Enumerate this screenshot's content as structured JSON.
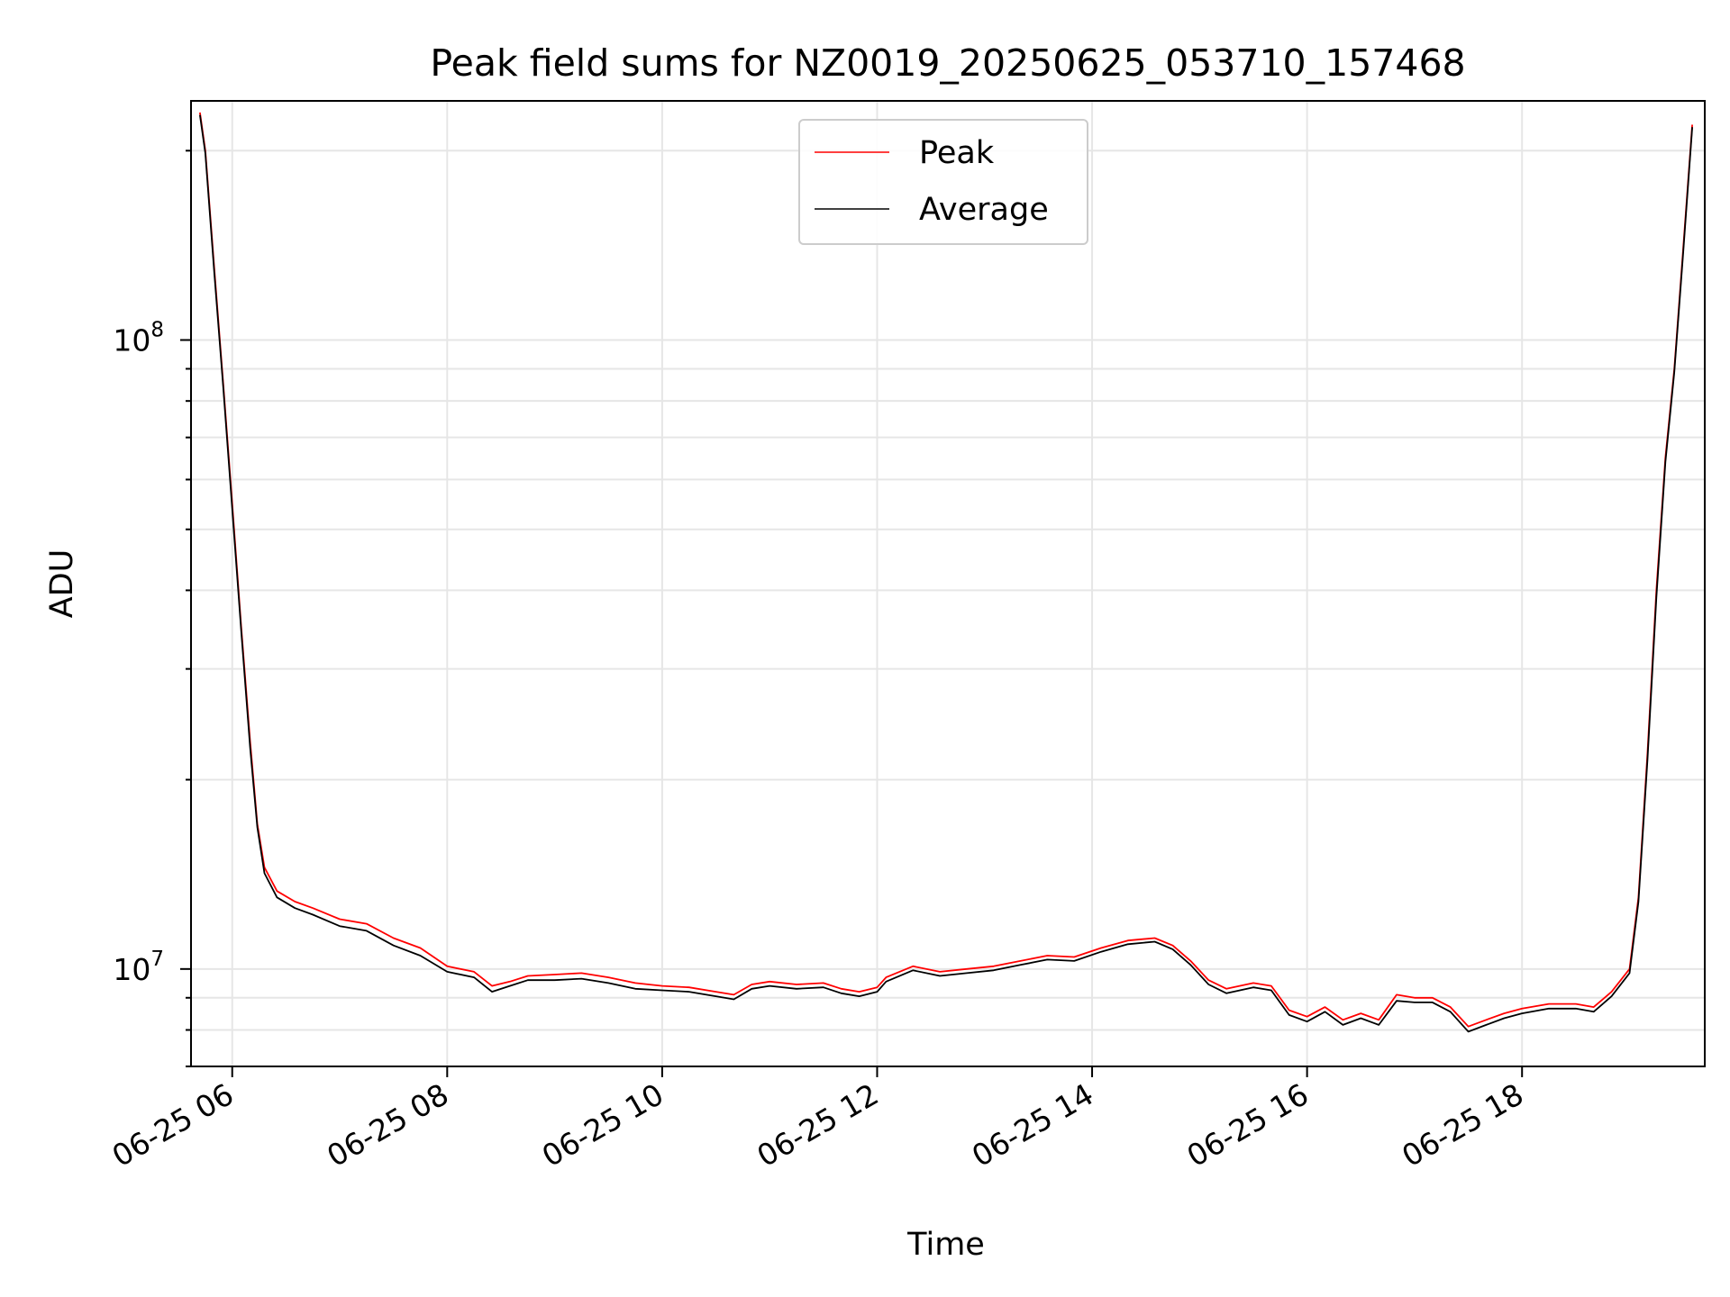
{
  "chart_data": {
    "type": "line",
    "title": "Peak field sums for NZ0019_20250625_053710_157468",
    "xlabel": "Time",
    "ylabel": "ADU",
    "yscale": "log",
    "ylim": [
      7000000,
      240000000
    ],
    "xlim": [
      "2025-06-25 05:37",
      "2025-06-25 19:42"
    ],
    "x_ticks": [
      {
        "t": "2025-06-25 06:00",
        "label": "06-25 06"
      },
      {
        "t": "2025-06-25 08:00",
        "label": "06-25 08"
      },
      {
        "t": "2025-06-25 10:00",
        "label": "06-25 10"
      },
      {
        "t": "2025-06-25 12:00",
        "label": "06-25 12"
      },
      {
        "t": "2025-06-25 14:00",
        "label": "06-25 14"
      },
      {
        "t": "2025-06-25 16:00",
        "label": "06-25 16"
      },
      {
        "t": "2025-06-25 18:00",
        "label": "06-25 18"
      }
    ],
    "y_ticks": [
      {
        "value": 10000000,
        "label": "10",
        "exp": "7"
      },
      {
        "value": 100000000,
        "label": "10",
        "exp": "8"
      }
    ],
    "grid": true,
    "legend_position": "top-center",
    "series": [
      {
        "name": "Peak",
        "color": "#ff0000",
        "points": [
          [
            "2025-06-25 05:42",
            230000000
          ],
          [
            "2025-06-25 05:45",
            200000000
          ],
          [
            "2025-06-25 05:50",
            130000000
          ],
          [
            "2025-06-25 05:55",
            85000000
          ],
          [
            "2025-06-25 06:00",
            55000000
          ],
          [
            "2025-06-25 06:05",
            35000000
          ],
          [
            "2025-06-25 06:10",
            23000000
          ],
          [
            "2025-06-25 06:14",
            17000000
          ],
          [
            "2025-06-25 06:18",
            14500000
          ],
          [
            "2025-06-25 06:25",
            13300000
          ],
          [
            "2025-06-25 06:35",
            12800000
          ],
          [
            "2025-06-25 06:45",
            12500000
          ],
          [
            "2025-06-25 07:00",
            12000000
          ],
          [
            "2025-06-25 07:15",
            11800000
          ],
          [
            "2025-06-25 07:30",
            11200000
          ],
          [
            "2025-06-25 07:45",
            10800000
          ],
          [
            "2025-06-25 08:00",
            10100000
          ],
          [
            "2025-06-25 08:15",
            9900000
          ],
          [
            "2025-06-25 08:25",
            9400000
          ],
          [
            "2025-06-25 08:35",
            9550000
          ],
          [
            "2025-06-25 08:45",
            9750000
          ],
          [
            "2025-06-25 09:00",
            9800000
          ],
          [
            "2025-06-25 09:15",
            9850000
          ],
          [
            "2025-06-25 09:30",
            9700000
          ],
          [
            "2025-06-25 09:45",
            9500000
          ],
          [
            "2025-06-25 10:00",
            9400000
          ],
          [
            "2025-06-25 10:15",
            9350000
          ],
          [
            "2025-06-25 10:30",
            9200000
          ],
          [
            "2025-06-25 10:40",
            9100000
          ],
          [
            "2025-06-25 10:50",
            9450000
          ],
          [
            "2025-06-25 11:00",
            9550000
          ],
          [
            "2025-06-25 11:15",
            9450000
          ],
          [
            "2025-06-25 11:30",
            9500000
          ],
          [
            "2025-06-25 11:40",
            9300000
          ],
          [
            "2025-06-25 11:50",
            9200000
          ],
          [
            "2025-06-25 12:00",
            9350000
          ],
          [
            "2025-06-25 12:05",
            9700000
          ],
          [
            "2025-06-25 12:20",
            10100000
          ],
          [
            "2025-06-25 12:35",
            9900000
          ],
          [
            "2025-06-25 12:50",
            10000000
          ],
          [
            "2025-06-25 13:05",
            10100000
          ],
          [
            "2025-06-25 13:20",
            10300000
          ],
          [
            "2025-06-25 13:35",
            10500000
          ],
          [
            "2025-06-25 13:50",
            10450000
          ],
          [
            "2025-06-25 14:05",
            10800000
          ],
          [
            "2025-06-25 14:20",
            11100000
          ],
          [
            "2025-06-25 14:35",
            11200000
          ],
          [
            "2025-06-25 14:45",
            10900000
          ],
          [
            "2025-06-25 14:55",
            10300000
          ],
          [
            "2025-06-25 15:05",
            9600000
          ],
          [
            "2025-06-25 15:15",
            9300000
          ],
          [
            "2025-06-25 15:30",
            9500000
          ],
          [
            "2025-06-25 15:40",
            9400000
          ],
          [
            "2025-06-25 15:50",
            8600000
          ],
          [
            "2025-06-25 16:00",
            8400000
          ],
          [
            "2025-06-25 16:10",
            8700000
          ],
          [
            "2025-06-25 16:20",
            8300000
          ],
          [
            "2025-06-25 16:30",
            8500000
          ],
          [
            "2025-06-25 16:40",
            8300000
          ],
          [
            "2025-06-25 16:50",
            9100000
          ],
          [
            "2025-06-25 17:00",
            9000000
          ],
          [
            "2025-06-25 17:10",
            9000000
          ],
          [
            "2025-06-25 17:20",
            8700000
          ],
          [
            "2025-06-25 17:30",
            8100000
          ],
          [
            "2025-06-25 17:40",
            8300000
          ],
          [
            "2025-06-25 17:50",
            8500000
          ],
          [
            "2025-06-25 18:00",
            8650000
          ],
          [
            "2025-06-25 18:15",
            8800000
          ],
          [
            "2025-06-25 18:30",
            8800000
          ],
          [
            "2025-06-25 18:40",
            8700000
          ],
          [
            "2025-06-25 18:50",
            9200000
          ],
          [
            "2025-06-25 19:00",
            10000000
          ],
          [
            "2025-06-25 19:05",
            13000000
          ],
          [
            "2025-06-25 19:10",
            22000000
          ],
          [
            "2025-06-25 19:15",
            40000000
          ],
          [
            "2025-06-25 19:20",
            65000000
          ],
          [
            "2025-06-25 19:25",
            90000000
          ],
          [
            "2025-06-25 19:30",
            140000000
          ],
          [
            "2025-06-25 19:35",
            220000000
          ]
        ]
      },
      {
        "name": "Average",
        "color": "#000000",
        "points": [
          [
            "2025-06-25 05:42",
            228000000
          ],
          [
            "2025-06-25 05:45",
            198000000
          ],
          [
            "2025-06-25 05:50",
            128000000
          ],
          [
            "2025-06-25 05:55",
            84000000
          ],
          [
            "2025-06-25 06:00",
            54000000
          ],
          [
            "2025-06-25 06:05",
            34500000
          ],
          [
            "2025-06-25 06:10",
            22500000
          ],
          [
            "2025-06-25 06:14",
            16800000
          ],
          [
            "2025-06-25 06:18",
            14200000
          ],
          [
            "2025-06-25 06:25",
            13000000
          ],
          [
            "2025-06-25 06:35",
            12500000
          ],
          [
            "2025-06-25 06:45",
            12200000
          ],
          [
            "2025-06-25 07:00",
            11700000
          ],
          [
            "2025-06-25 07:15",
            11500000
          ],
          [
            "2025-06-25 07:30",
            10900000
          ],
          [
            "2025-06-25 07:45",
            10500000
          ],
          [
            "2025-06-25 08:00",
            9900000
          ],
          [
            "2025-06-25 08:15",
            9700000
          ],
          [
            "2025-06-25 08:25",
            9200000
          ],
          [
            "2025-06-25 08:35",
            9400000
          ],
          [
            "2025-06-25 08:45",
            9600000
          ],
          [
            "2025-06-25 09:00",
            9600000
          ],
          [
            "2025-06-25 09:15",
            9650000
          ],
          [
            "2025-06-25 09:30",
            9500000
          ],
          [
            "2025-06-25 09:45",
            9300000
          ],
          [
            "2025-06-25 10:00",
            9250000
          ],
          [
            "2025-06-25 10:15",
            9200000
          ],
          [
            "2025-06-25 10:30",
            9050000
          ],
          [
            "2025-06-25 10:40",
            8950000
          ],
          [
            "2025-06-25 10:50",
            9300000
          ],
          [
            "2025-06-25 11:00",
            9400000
          ],
          [
            "2025-06-25 11:15",
            9300000
          ],
          [
            "2025-06-25 11:30",
            9350000
          ],
          [
            "2025-06-25 11:40",
            9150000
          ],
          [
            "2025-06-25 11:50",
            9050000
          ],
          [
            "2025-06-25 12:00",
            9200000
          ],
          [
            "2025-06-25 12:05",
            9550000
          ],
          [
            "2025-06-25 12:20",
            9950000
          ],
          [
            "2025-06-25 12:35",
            9750000
          ],
          [
            "2025-06-25 12:50",
            9850000
          ],
          [
            "2025-06-25 13:05",
            9950000
          ],
          [
            "2025-06-25 13:20",
            10150000
          ],
          [
            "2025-06-25 13:35",
            10350000
          ],
          [
            "2025-06-25 13:50",
            10300000
          ],
          [
            "2025-06-25 14:05",
            10650000
          ],
          [
            "2025-06-25 14:20",
            10950000
          ],
          [
            "2025-06-25 14:35",
            11050000
          ],
          [
            "2025-06-25 14:45",
            10750000
          ],
          [
            "2025-06-25 14:55",
            10150000
          ],
          [
            "2025-06-25 15:05",
            9450000
          ],
          [
            "2025-06-25 15:15",
            9150000
          ],
          [
            "2025-06-25 15:30",
            9350000
          ],
          [
            "2025-06-25 15:40",
            9250000
          ],
          [
            "2025-06-25 15:50",
            8450000
          ],
          [
            "2025-06-25 16:00",
            8250000
          ],
          [
            "2025-06-25 16:10",
            8550000
          ],
          [
            "2025-06-25 16:20",
            8150000
          ],
          [
            "2025-06-25 16:30",
            8350000
          ],
          [
            "2025-06-25 16:40",
            8150000
          ],
          [
            "2025-06-25 16:50",
            8900000
          ],
          [
            "2025-06-25 17:00",
            8850000
          ],
          [
            "2025-06-25 17:10",
            8850000
          ],
          [
            "2025-06-25 17:20",
            8550000
          ],
          [
            "2025-06-25 17:30",
            7950000
          ],
          [
            "2025-06-25 17:40",
            8150000
          ],
          [
            "2025-06-25 17:50",
            8350000
          ],
          [
            "2025-06-25 18:00",
            8500000
          ],
          [
            "2025-06-25 18:15",
            8650000
          ],
          [
            "2025-06-25 18:30",
            8650000
          ],
          [
            "2025-06-25 18:40",
            8550000
          ],
          [
            "2025-06-25 18:50",
            9050000
          ],
          [
            "2025-06-25 19:00",
            9850000
          ],
          [
            "2025-06-25 19:05",
            12800000
          ],
          [
            "2025-06-25 19:10",
            21500000
          ],
          [
            "2025-06-25 19:15",
            39000000
          ],
          [
            "2025-06-25 19:20",
            64000000
          ],
          [
            "2025-06-25 19:25",
            89000000
          ],
          [
            "2025-06-25 19:30",
            138000000
          ],
          [
            "2025-06-25 19:35",
            218000000
          ]
        ]
      }
    ]
  }
}
